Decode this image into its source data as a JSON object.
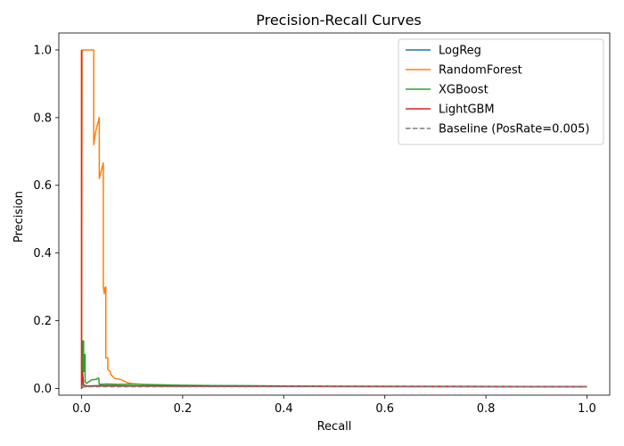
{
  "chart_data": {
    "type": "line",
    "title": "Precision-Recall Curves",
    "xlabel": "Recall",
    "ylabel": "Precision",
    "xlim": [
      -0.045,
      1.045
    ],
    "ylim": [
      -0.02,
      1.05
    ],
    "xticks": [
      0.0,
      0.2,
      0.4,
      0.6,
      0.8,
      1.0
    ],
    "xtick_labels": [
      "0.0",
      "0.2",
      "0.4",
      "0.6",
      "0.8",
      "1.0"
    ],
    "yticks": [
      0.0,
      0.2,
      0.4,
      0.6,
      0.8,
      1.0
    ],
    "ytick_labels": [
      "0.0",
      "0.2",
      "0.4",
      "0.6",
      "0.8",
      "1.0"
    ],
    "grid": false,
    "legend_position": "top-right",
    "series": [
      {
        "name": "LogReg",
        "color": "#1f77b4",
        "style": "solid",
        "points": [
          [
            0.0,
            0.0
          ],
          [
            0.002,
            0.004
          ],
          [
            0.01,
            0.006
          ],
          [
            0.03,
            0.007
          ],
          [
            0.06,
            0.007
          ],
          [
            0.1,
            0.007
          ],
          [
            0.2,
            0.006
          ],
          [
            0.4,
            0.006
          ],
          [
            0.6,
            0.005
          ],
          [
            0.8,
            0.005
          ],
          [
            1.0,
            0.005
          ]
        ]
      },
      {
        "name": "RandomForest",
        "color": "#ff7f0e",
        "style": "solid",
        "points": [
          [
            0.0,
            1.0
          ],
          [
            0.0,
            0.01
          ],
          [
            0.001,
            1.0
          ],
          [
            0.024,
            1.0
          ],
          [
            0.024,
            0.72
          ],
          [
            0.028,
            0.76
          ],
          [
            0.035,
            0.8
          ],
          [
            0.035,
            0.62
          ],
          [
            0.043,
            0.666
          ],
          [
            0.043,
            0.3
          ],
          [
            0.045,
            0.28
          ],
          [
            0.046,
            0.296
          ],
          [
            0.048,
            0.3
          ],
          [
            0.048,
            0.09
          ],
          [
            0.052,
            0.09
          ],
          [
            0.052,
            0.055
          ],
          [
            0.057,
            0.05
          ],
          [
            0.058,
            0.04
          ],
          [
            0.062,
            0.035
          ],
          [
            0.065,
            0.03
          ],
          [
            0.07,
            0.028
          ],
          [
            0.075,
            0.027
          ],
          [
            0.08,
            0.025
          ],
          [
            0.083,
            0.022
          ],
          [
            0.087,
            0.02
          ],
          [
            0.09,
            0.017
          ],
          [
            0.1,
            0.014
          ],
          [
            0.12,
            0.012
          ],
          [
            0.15,
            0.011
          ],
          [
            0.2,
            0.009
          ],
          [
            0.3,
            0.008
          ],
          [
            0.4,
            0.007
          ],
          [
            0.6,
            0.006
          ],
          [
            0.8,
            0.006
          ],
          [
            1.0,
            0.005
          ]
        ]
      },
      {
        "name": "XGBoost",
        "color": "#2ca02c",
        "style": "solid",
        "points": [
          [
            0.0,
            0.0
          ],
          [
            0.001,
            0.01
          ],
          [
            0.002,
            0.14
          ],
          [
            0.004,
            0.14
          ],
          [
            0.004,
            0.05
          ],
          [
            0.006,
            0.05
          ],
          [
            0.006,
            0.1
          ],
          [
            0.007,
            0.1
          ],
          [
            0.007,
            0.02
          ],
          [
            0.01,
            0.015
          ],
          [
            0.02,
            0.025
          ],
          [
            0.03,
            0.027
          ],
          [
            0.032,
            0.03
          ],
          [
            0.034,
            0.03
          ],
          [
            0.035,
            0.012
          ],
          [
            0.05,
            0.013
          ],
          [
            0.07,
            0.012
          ],
          [
            0.09,
            0.012
          ],
          [
            0.11,
            0.012
          ],
          [
            0.13,
            0.011
          ],
          [
            0.2,
            0.009
          ],
          [
            0.3,
            0.008
          ],
          [
            0.5,
            0.006
          ],
          [
            0.7,
            0.006
          ],
          [
            1.0,
            0.005
          ]
        ]
      },
      {
        "name": "LightGBM",
        "color": "#d62728",
        "style": "solid",
        "points": [
          [
            0.0,
            1.0
          ],
          [
            0.0,
            0.0
          ],
          [
            0.002,
            0.05
          ],
          [
            0.004,
            0.01
          ],
          [
            0.01,
            0.007
          ],
          [
            0.03,
            0.008
          ],
          [
            0.06,
            0.008
          ],
          [
            0.1,
            0.007
          ],
          [
            0.2,
            0.007
          ],
          [
            0.4,
            0.006
          ],
          [
            0.6,
            0.006
          ],
          [
            0.8,
            0.005
          ],
          [
            1.0,
            0.005
          ]
        ]
      },
      {
        "name": "Baseline (PosRate=0.005)",
        "color": "#7f7f7f",
        "style": "dashed",
        "points": [
          [
            0.0,
            0.005
          ],
          [
            1.0,
            0.005
          ]
        ]
      }
    ]
  }
}
